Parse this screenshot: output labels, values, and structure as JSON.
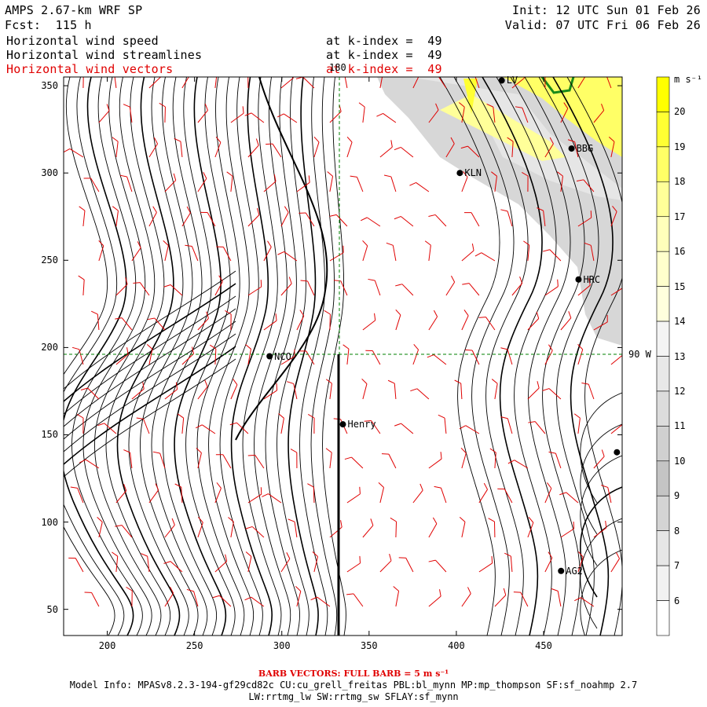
{
  "header": {
    "model_name": "AMPS 2.67-km WRF SP",
    "forecast": "Fcst:  115 h",
    "init": "Init: 12 UTC Sun 01 Feb 26",
    "valid": "Valid: 07 UTC Fri 06 Feb 26"
  },
  "fields": [
    {
      "label": "Horizontal wind speed",
      "level": "at k-index =  49",
      "color": "#000000"
    },
    {
      "label": "Horizontal wind streamlines",
      "level": "at k-index =  49",
      "color": "#000000"
    },
    {
      "label": "Horizontal wind vectors",
      "level": "at k-index =  49",
      "color": "#e00000"
    }
  ],
  "map": {
    "x_ticks": [
      "200",
      "250",
      "300",
      "350",
      "400",
      "450"
    ],
    "y_ticks": [
      "350",
      "300",
      "250",
      "200",
      "150",
      "100",
      "50"
    ],
    "meridian_label": "180",
    "parallel_label": "90 W",
    "stations": [
      {
        "name": "LV",
        "x": 426,
        "y": 353
      },
      {
        "name": "BBG",
        "x": 466,
        "y": 314
      },
      {
        "name": "KLN",
        "x": 402,
        "y": 300
      },
      {
        "name": "HRC",
        "x": 470,
        "y": 239
      },
      {
        "name": "NCO",
        "x": 293,
        "y": 195
      },
      {
        "name": "Henry",
        "x": 335,
        "y": 156
      },
      {
        "name": "AG2",
        "x": 460,
        "y": 72
      },
      {
        "name": "",
        "x": 492,
        "y": 140
      }
    ],
    "colors": {
      "vectors": "#e00000",
      "guides": "#008000",
      "coast": "#1a8a1a"
    }
  },
  "colorbar": {
    "units": "m s⁻¹",
    "labels": [
      "20",
      "19",
      "18",
      "17",
      "16",
      "15",
      "14",
      "13",
      "12",
      "11",
      "10",
      "9",
      "8",
      "7",
      "6"
    ],
    "colors": [
      "#ffff00",
      "#ffff33",
      "#ffff66",
      "#ffff99",
      "#ffffbb",
      "#ffffcc",
      "#ffffdd",
      "#f4f4f4",
      "#e8e8e8",
      "#dcdcdc",
      "#d0d0d0",
      "#c4c4c4",
      "#d4d4d4",
      "#e6e6e6",
      "#f2f2f2",
      "#ffffff"
    ]
  },
  "footer": {
    "barb_note": "BARB VECTORS: FULL BARB = 5 m s⁻¹",
    "model_info": "Model Info: MPASv8.2.3-194-gf29cd82c CU:cu_grell_freitas PBL:bl_mynn MP:mp_thompson SF:sf_noahmp 2.7",
    "model_info2": "LW:rrtmg_lw SW:rrtmg_sw SFLAY:sf_mynn"
  }
}
